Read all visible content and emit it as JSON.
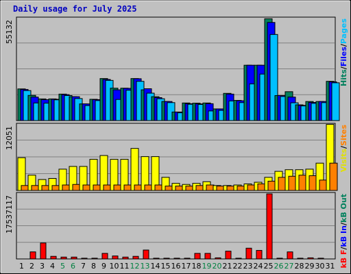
{
  "chart_data": {
    "type": "bar",
    "title": "Daily usage for July 2025",
    "categories": [
      "1",
      "2",
      "3",
      "4",
      "5",
      "6",
      "7",
      "8",
      "9",
      "10",
      "11",
      "12",
      "13",
      "14",
      "15",
      "16",
      "17",
      "18",
      "19",
      "20",
      "21",
      "22",
      "23",
      "24",
      "25",
      "26",
      "27",
      "28",
      "29",
      "30",
      "31"
    ],
    "weekend_days": [
      "5",
      "6",
      "12",
      "13",
      "19",
      "20",
      "26",
      "27"
    ],
    "weekend_label_color": "#008040",
    "panels": [
      {
        "name": "hits-files-pages",
        "max_label": "55132",
        "ymax": 55132,
        "legend": [
          {
            "text": "Hits",
            "color": "#00805c"
          },
          {
            "text": "/",
            "color": "#000000"
          },
          {
            "text": "Files",
            "color": "#0000ff"
          },
          {
            "text": "/",
            "color": "#000000"
          },
          {
            "text": "Pages",
            "color": "#00c0ff"
          }
        ],
        "series": [
          {
            "name": "Hits",
            "color": "#00805c",
            "values": [
              17100,
              13600,
              11700,
              11700,
              14300,
              12900,
              9000,
              11500,
              22700,
              17500,
              17500,
              22700,
              16600,
              12900,
              10300,
              4600,
              9500,
              9400,
              9500,
              6300,
              14700,
              10900,
              29900,
              29900,
              55000,
              13500,
              15600,
              8500,
              10300,
              10300,
              21200
            ]
          },
          {
            "name": "Files",
            "color": "#0000ff",
            "values": [
              16800,
              12700,
              11300,
              11500,
              14000,
              12900,
              9000,
              11300,
              22200,
              16600,
              17400,
              22600,
              17200,
              12400,
              10300,
              4600,
              9100,
              9000,
              9100,
              6300,
              14300,
              10700,
              29900,
              29900,
              53000,
              13500,
              12700,
              8200,
              9800,
              10300,
              20900
            ]
          },
          {
            "name": "Pages",
            "color": "#00c0ff",
            "values": [
              16200,
              9500,
              9400,
              11200,
              13500,
              11900,
              8100,
              10800,
              21700,
              11400,
              16400,
              21200,
              14800,
              11800,
              9700,
              4200,
              8800,
              8700,
              5200,
              5500,
              10600,
              9700,
              19800,
              25100,
              46500,
              13000,
              9600,
              7900,
              9300,
              9700,
              20400
            ]
          }
        ]
      },
      {
        "name": "visits-sites",
        "max_label": "12051",
        "ymax": 12051,
        "legend": [
          {
            "text": "Visits",
            "color": "#e0e000"
          },
          {
            "text": "/",
            "color": "#000000"
          },
          {
            "text": "Sites",
            "color": "#ff8000"
          }
        ],
        "series": [
          {
            "name": "Visits",
            "color": "#ffff00",
            "values": [
              6000,
              2800,
              2000,
              2200,
              3900,
              4400,
              4400,
              5700,
              6400,
              5700,
              5700,
              7700,
              6200,
              6200,
              2400,
              1300,
              1100,
              1300,
              1600,
              900,
              900,
              1000,
              1200,
              1500,
              2400,
              3500,
              3800,
              3800,
              3900,
              5000,
              12100
            ]
          },
          {
            "name": "Sites",
            "color": "#ff8000",
            "values": [
              900,
              900,
              900,
              900,
              1000,
              1100,
              1000,
              1000,
              1000,
              1000,
              1000,
              1000,
              1000,
              1000,
              800,
              800,
              800,
              900,
              1000,
              800,
              800,
              800,
              1000,
              1200,
              1700,
              2400,
              2600,
              2800,
              2700,
              1900,
              5000
            ]
          }
        ]
      },
      {
        "name": "kbytes",
        "max_label": "17537117",
        "ymax": 17537117,
        "legend": [
          {
            "text": "kB F",
            "color": "#ff0000"
          },
          {
            "text": "/",
            "color": "#000000"
          },
          {
            "text": "kB In",
            "color": "#0000ff"
          },
          {
            "text": "/",
            "color": "#000000"
          },
          {
            "text": "kB Out",
            "color": "#00805c"
          }
        ],
        "series": [
          {
            "name": "kB F",
            "color": "#ff0000",
            "values": [
              0,
              1900000,
              4300000,
              700000,
              500000,
              500000,
              200000,
              200000,
              1500000,
              800000,
              500000,
              700000,
              2400000,
              200000,
              200000,
              200000,
              200000,
              1500000,
              1500000,
              300000,
              2100000,
              200000,
              2900000,
              2300000,
              17537117,
              200000,
              1900000,
              200000,
              300000,
              200000,
              0
            ]
          },
          {
            "name": "kB In",
            "color": "#0000ff",
            "values": [
              0,
              0,
              0,
              0,
              0,
              0,
              0,
              0,
              0,
              0,
              0,
              0,
              0,
              0,
              0,
              0,
              0,
              0,
              0,
              0,
              0,
              0,
              0,
              0,
              0,
              0,
              0,
              0,
              0,
              0,
              0
            ]
          },
          {
            "name": "kB Out",
            "color": "#00805c",
            "values": [
              0,
              0,
              0,
              0,
              0,
              0,
              0,
              0,
              0,
              0,
              0,
              0,
              0,
              0,
              0,
              0,
              0,
              0,
              0,
              0,
              0,
              0,
              0,
              0,
              0,
              0,
              0,
              0,
              0,
              0,
              0
            ]
          }
        ]
      }
    ]
  }
}
